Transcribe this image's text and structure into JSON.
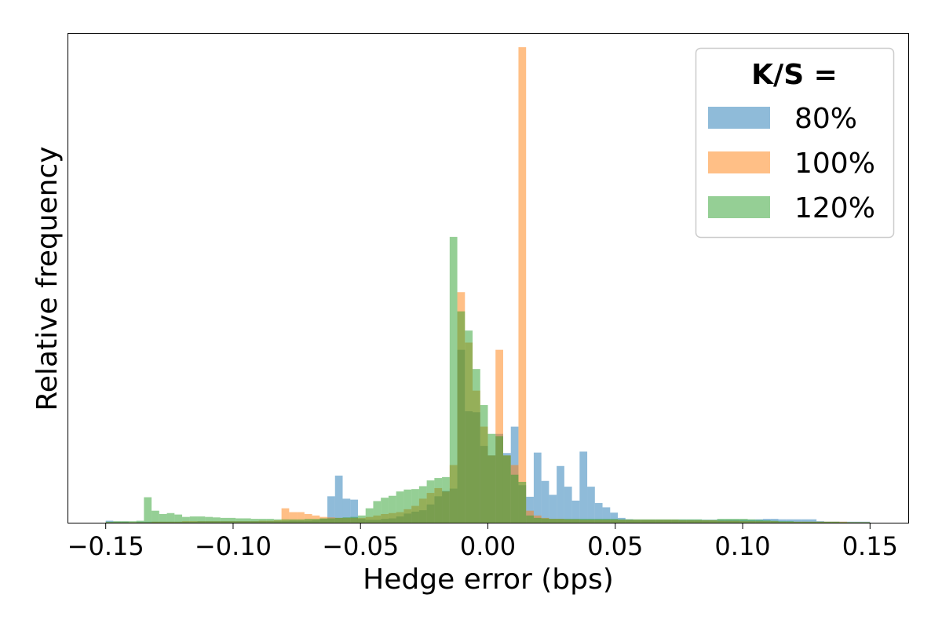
{
  "chart_data": {
    "type": "histogram",
    "xlabel": "Hedge error (bps)",
    "ylabel": "Relative frequency",
    "xlim": [
      -0.165,
      0.165
    ],
    "ylim": [
      0,
      100
    ],
    "xticks": [
      -0.15,
      -0.1,
      -0.05,
      0.0,
      0.05,
      0.1,
      0.15
    ],
    "xtick_labels": [
      "−0.15",
      "−0.10",
      "−0.05",
      "0.00",
      "0.05",
      "0.10",
      "0.15"
    ],
    "y_ticks_shown": false,
    "legend": {
      "title": "K/S =",
      "placement": "upper right"
    },
    "bin_edges_range": [
      -0.15,
      0.15
    ],
    "bin_width": 0.003,
    "series": [
      {
        "name": "80%",
        "color": "#1f77b4",
        "bins": [
          [
            -0.15,
            0.4
          ],
          [
            -0.147,
            0.2
          ],
          [
            -0.144,
            0.2
          ],
          [
            -0.141,
            0.1
          ],
          [
            -0.138,
            0.2
          ],
          [
            -0.135,
            0.2
          ],
          [
            -0.132,
            0.2
          ],
          [
            -0.129,
            0.2
          ],
          [
            -0.126,
            0.2
          ],
          [
            -0.123,
            0.2
          ],
          [
            -0.12,
            0.2
          ],
          [
            -0.117,
            0.2
          ],
          [
            -0.114,
            0.3
          ],
          [
            -0.111,
            0.3
          ],
          [
            -0.108,
            0.3
          ],
          [
            -0.105,
            0.3
          ],
          [
            -0.102,
            0.3
          ],
          [
            -0.099,
            0.3
          ],
          [
            -0.096,
            0.3
          ],
          [
            -0.093,
            0.3
          ],
          [
            -0.09,
            0.3
          ],
          [
            -0.087,
            0.3
          ],
          [
            -0.084,
            0.3
          ],
          [
            -0.081,
            0.3
          ],
          [
            -0.078,
            0.4
          ],
          [
            -0.075,
            0.4
          ],
          [
            -0.072,
            0.4
          ],
          [
            -0.069,
            0.5
          ],
          [
            -0.066,
            0.8
          ],
          [
            -0.063,
            5.5
          ],
          [
            -0.06,
            9.8
          ],
          [
            -0.057,
            5.0
          ],
          [
            -0.054,
            4.8
          ],
          [
            -0.051,
            0.8
          ],
          [
            -0.048,
            0.6
          ],
          [
            -0.045,
            0.6
          ],
          [
            -0.042,
            0.8
          ],
          [
            -0.039,
            0.9
          ],
          [
            -0.036,
            1.3
          ],
          [
            -0.033,
            1.9
          ],
          [
            -0.03,
            2.3
          ],
          [
            -0.027,
            2.6
          ],
          [
            -0.024,
            3.8
          ],
          [
            -0.021,
            5.5
          ],
          [
            -0.018,
            6.6
          ],
          [
            -0.015,
            7.1
          ],
          [
            -0.012,
            36.0
          ],
          [
            -0.009,
            23.2
          ],
          [
            -0.006,
            23.0
          ],
          [
            -0.003,
            16.0
          ],
          [
            0.0,
            14.0
          ],
          [
            0.003,
            18.5
          ],
          [
            0.006,
            14.5
          ],
          [
            0.009,
            20.0
          ],
          [
            0.012,
            7.8
          ],
          [
            0.015,
            5.4
          ],
          [
            0.018,
            14.6
          ],
          [
            0.021,
            8.7
          ],
          [
            0.024,
            5.8
          ],
          [
            0.027,
            11.8
          ],
          [
            0.03,
            7.5
          ],
          [
            0.033,
            4.6
          ],
          [
            0.036,
            14.8
          ],
          [
            0.039,
            7.5
          ],
          [
            0.042,
            4.1
          ],
          [
            0.045,
            3.2
          ],
          [
            0.048,
            2.1
          ],
          [
            0.051,
            1.0
          ],
          [
            0.054,
            0.7
          ],
          [
            0.057,
            0.6
          ],
          [
            0.06,
            0.6
          ],
          [
            0.063,
            0.6
          ],
          [
            0.066,
            0.6
          ],
          [
            0.069,
            0.6
          ],
          [
            0.072,
            0.6
          ],
          [
            0.075,
            0.6
          ],
          [
            0.078,
            0.6
          ],
          [
            0.081,
            0.6
          ],
          [
            0.084,
            0.6
          ],
          [
            0.087,
            0.6
          ],
          [
            0.09,
            0.6
          ],
          [
            0.093,
            0.6
          ],
          [
            0.096,
            0.6
          ],
          [
            0.099,
            0.6
          ],
          [
            0.102,
            0.6
          ],
          [
            0.105,
            0.7
          ],
          [
            0.108,
            0.8
          ],
          [
            0.111,
            0.8
          ],
          [
            0.114,
            0.7
          ],
          [
            0.117,
            0.7
          ],
          [
            0.12,
            0.7
          ],
          [
            0.123,
            0.7
          ],
          [
            0.126,
            0.7
          ],
          [
            0.129,
            0.3
          ],
          [
            0.132,
            0.2
          ],
          [
            0.135,
            0.2
          ],
          [
            0.138,
            0.2
          ],
          [
            0.141,
            0.2
          ],
          [
            0.144,
            0.2
          ],
          [
            0.147,
            0.2
          ]
        ]
      },
      {
        "name": "100%",
        "color": "#ff7f0e",
        "bins": [
          [
            -0.15,
            0.1
          ],
          [
            -0.147,
            0.1
          ],
          [
            -0.144,
            0.1
          ],
          [
            -0.141,
            0.1
          ],
          [
            -0.138,
            0.1
          ],
          [
            -0.135,
            0.1
          ],
          [
            -0.132,
            0.2
          ],
          [
            -0.129,
            0.2
          ],
          [
            -0.126,
            0.2
          ],
          [
            -0.123,
            0.2
          ],
          [
            -0.12,
            0.3
          ],
          [
            -0.117,
            0.3
          ],
          [
            -0.114,
            0.3
          ],
          [
            -0.111,
            0.3
          ],
          [
            -0.108,
            0.3
          ],
          [
            -0.105,
            0.3
          ],
          [
            -0.102,
            0.3
          ],
          [
            -0.099,
            0.3
          ],
          [
            -0.096,
            0.3
          ],
          [
            -0.093,
            0.3
          ],
          [
            -0.09,
            0.4
          ],
          [
            -0.087,
            0.4
          ],
          [
            -0.084,
            0.5
          ],
          [
            -0.081,
            3.0
          ],
          [
            -0.078,
            2.2
          ],
          [
            -0.075,
            2.2
          ],
          [
            -0.072,
            1.8
          ],
          [
            -0.069,
            1.5
          ],
          [
            -0.066,
            1.2
          ],
          [
            -0.063,
            1.1
          ],
          [
            -0.06,
            1.0
          ],
          [
            -0.057,
            1.0
          ],
          [
            -0.054,
            1.0
          ],
          [
            -0.051,
            1.0
          ],
          [
            -0.048,
            1.2
          ],
          [
            -0.045,
            1.5
          ],
          [
            -0.042,
            1.8
          ],
          [
            -0.039,
            2.0
          ],
          [
            -0.036,
            2.2
          ],
          [
            -0.033,
            2.8
          ],
          [
            -0.03,
            3.5
          ],
          [
            -0.027,
            5.0
          ],
          [
            -0.024,
            6.2
          ],
          [
            -0.021,
            7.2
          ],
          [
            -0.018,
            6.5
          ],
          [
            -0.015,
            12.0
          ],
          [
            -0.012,
            48.0
          ],
          [
            -0.009,
            37.5
          ],
          [
            -0.006,
            27.5
          ],
          [
            -0.003,
            20.0
          ],
          [
            0.0,
            14.0
          ],
          [
            0.003,
            36.0
          ],
          [
            0.006,
            14.0
          ],
          [
            0.009,
            12.0
          ],
          [
            0.012,
            99.0
          ],
          [
            0.015,
            2.5
          ],
          [
            0.018,
            1.5
          ],
          [
            0.021,
            1.0
          ],
          [
            0.024,
            0.8
          ],
          [
            0.027,
            0.8
          ],
          [
            0.03,
            0.7
          ],
          [
            0.033,
            0.7
          ],
          [
            0.036,
            0.6
          ],
          [
            0.039,
            0.6
          ],
          [
            0.042,
            0.6
          ],
          [
            0.045,
            0.6
          ],
          [
            0.048,
            0.6
          ],
          [
            0.051,
            0.6
          ],
          [
            0.054,
            0.6
          ],
          [
            0.057,
            0.6
          ],
          [
            0.06,
            0.6
          ],
          [
            0.063,
            0.6
          ],
          [
            0.066,
            0.6
          ],
          [
            0.069,
            0.6
          ],
          [
            0.072,
            0.6
          ],
          [
            0.075,
            0.5
          ],
          [
            0.078,
            0.5
          ],
          [
            0.081,
            0.5
          ],
          [
            0.084,
            0.5
          ],
          [
            0.087,
            0.5
          ],
          [
            0.09,
            0.4
          ],
          [
            0.093,
            0.4
          ],
          [
            0.096,
            0.4
          ],
          [
            0.099,
            0.3
          ],
          [
            0.102,
            0.3
          ],
          [
            0.105,
            0.3
          ],
          [
            0.108,
            0.3
          ],
          [
            0.111,
            0.3
          ],
          [
            0.114,
            0.2
          ],
          [
            0.117,
            0.2
          ],
          [
            0.12,
            0.2
          ],
          [
            0.123,
            0.2
          ],
          [
            0.126,
            0.2
          ],
          [
            0.129,
            0.2
          ],
          [
            0.132,
            0.2
          ],
          [
            0.135,
            0.2
          ],
          [
            0.138,
            0.2
          ],
          [
            0.141,
            0.1
          ],
          [
            0.144,
            0.1
          ],
          [
            0.147,
            0.1
          ]
        ]
      },
      {
        "name": "120%",
        "color": "#2ca02c",
        "bins": [
          [
            -0.15,
            0.2
          ],
          [
            -0.147,
            0.3
          ],
          [
            -0.144,
            0.3
          ],
          [
            -0.141,
            0.3
          ],
          [
            -0.138,
            0.4
          ],
          [
            -0.135,
            5.3
          ],
          [
            -0.132,
            2.5
          ],
          [
            -0.129,
            1.8
          ],
          [
            -0.126,
            2.0
          ],
          [
            -0.123,
            1.7
          ],
          [
            -0.12,
            1.2
          ],
          [
            -0.117,
            1.3
          ],
          [
            -0.114,
            1.3
          ],
          [
            -0.111,
            1.2
          ],
          [
            -0.108,
            1.1
          ],
          [
            -0.105,
            1.0
          ],
          [
            -0.102,
            1.0
          ],
          [
            -0.099,
            0.9
          ],
          [
            -0.096,
            0.9
          ],
          [
            -0.093,
            0.8
          ],
          [
            -0.09,
            0.8
          ],
          [
            -0.087,
            0.8
          ],
          [
            -0.084,
            0.7
          ],
          [
            -0.081,
            0.7
          ],
          [
            -0.078,
            0.7
          ],
          [
            -0.075,
            0.7
          ],
          [
            -0.072,
            0.8
          ],
          [
            -0.069,
            0.8
          ],
          [
            -0.066,
            0.9
          ],
          [
            -0.063,
            0.9
          ],
          [
            -0.06,
            1.0
          ],
          [
            -0.057,
            1.1
          ],
          [
            -0.054,
            1.2
          ],
          [
            -0.051,
            1.5
          ],
          [
            -0.048,
            3.0
          ],
          [
            -0.045,
            4.5
          ],
          [
            -0.042,
            5.2
          ],
          [
            -0.039,
            5.6
          ],
          [
            -0.036,
            6.5
          ],
          [
            -0.033,
            6.9
          ],
          [
            -0.03,
            7.0
          ],
          [
            -0.027,
            7.6
          ],
          [
            -0.024,
            8.8
          ],
          [
            -0.021,
            9.3
          ],
          [
            -0.018,
            9.5
          ],
          [
            -0.015,
            59.5
          ],
          [
            -0.012,
            44.0
          ],
          [
            -0.009,
            40.0
          ],
          [
            -0.006,
            32.0
          ],
          [
            -0.003,
            24.5
          ],
          [
            0.0,
            18.5
          ],
          [
            0.003,
            18.0
          ],
          [
            0.006,
            14.0
          ],
          [
            0.009,
            10.0
          ],
          [
            0.012,
            8.5
          ],
          [
            0.015,
            1.5
          ],
          [
            0.018,
            1.0
          ],
          [
            0.021,
            0.9
          ],
          [
            0.024,
            0.8
          ],
          [
            0.027,
            0.8
          ],
          [
            0.03,
            0.8
          ],
          [
            0.033,
            0.8
          ],
          [
            0.036,
            0.8
          ],
          [
            0.039,
            0.8
          ],
          [
            0.042,
            0.8
          ],
          [
            0.045,
            0.8
          ],
          [
            0.048,
            0.8
          ],
          [
            0.051,
            0.7
          ],
          [
            0.054,
            0.7
          ],
          [
            0.057,
            0.7
          ],
          [
            0.06,
            0.7
          ],
          [
            0.063,
            0.7
          ],
          [
            0.066,
            0.7
          ],
          [
            0.069,
            0.7
          ],
          [
            0.072,
            0.7
          ],
          [
            0.075,
            0.7
          ],
          [
            0.078,
            0.7
          ],
          [
            0.081,
            0.7
          ],
          [
            0.084,
            0.6
          ],
          [
            0.087,
            0.6
          ],
          [
            0.09,
            0.8
          ],
          [
            0.093,
            0.8
          ],
          [
            0.096,
            0.8
          ],
          [
            0.099,
            0.8
          ],
          [
            0.102,
            0.7
          ],
          [
            0.105,
            0.6
          ],
          [
            0.108,
            0.5
          ],
          [
            0.111,
            0.4
          ],
          [
            0.114,
            0.3
          ],
          [
            0.117,
            0.3
          ],
          [
            0.12,
            0.2
          ],
          [
            0.123,
            0.2
          ],
          [
            0.126,
            0.2
          ],
          [
            0.129,
            0.2
          ],
          [
            0.132,
            0.2
          ],
          [
            0.135,
            0.2
          ],
          [
            0.138,
            0.1
          ],
          [
            0.141,
            0.1
          ],
          [
            0.144,
            0.1
          ],
          [
            0.147,
            0.1
          ]
        ]
      }
    ]
  }
}
